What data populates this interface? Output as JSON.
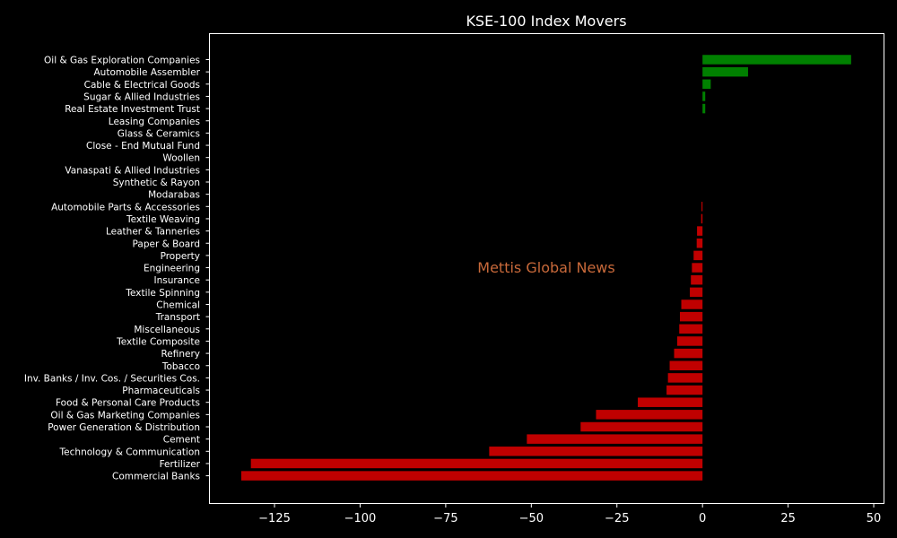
{
  "chart_data": {
    "type": "bar",
    "orientation": "horizontal",
    "title": "KSE-100 Index Movers",
    "watermark": "Mettis Global News",
    "xlim": [
      -144,
      53
    ],
    "xticks": [
      -125,
      -100,
      -75,
      -50,
      -25,
      0,
      25,
      50
    ],
    "xtick_labels": [
      "−125",
      "−100",
      "−75",
      "−50",
      "−25",
      "0",
      "25",
      "50"
    ],
    "grid": false,
    "colors": {
      "positive": "#008000",
      "negative": "#c00000",
      "background": "#000000",
      "axes": "#ffffff"
    },
    "categories": [
      "Oil & Gas Exploration Companies",
      "Automobile Assembler",
      "Cable & Electrical Goods",
      "Sugar & Allied Industries",
      "Real Estate Investment Trust",
      "Leasing Companies",
      "Glass & Ceramics",
      "Close - End Mutual Fund",
      "Woollen",
      "Vanaspati & Allied Industries",
      "Synthetic & Rayon",
      "Modarabas",
      "Automobile Parts & Accessories",
      "Textile Weaving",
      "Leather & Tanneries",
      "Paper & Board",
      "Property",
      "Engineering",
      "Insurance",
      "Textile Spinning",
      "Chemical",
      "Transport",
      "Miscellaneous",
      "Textile Composite",
      "Refinery",
      "Tobacco",
      "Inv. Banks / Inv. Cos. / Securities Cos.",
      "Pharmaceuticals",
      "Food & Personal Care Products",
      "Oil & Gas Marketing Companies",
      "Power Generation & Distribution",
      "Cement",
      "Technology & Communication",
      "Fertilizer",
      "Commercial Banks"
    ],
    "values": [
      43.4,
      13.3,
      2.4,
      0.8,
      0.8,
      0,
      0,
      0,
      0,
      0,
      0,
      0,
      -0.3,
      -0.4,
      -1.6,
      -1.7,
      -2.6,
      -3.1,
      -3.4,
      -3.7,
      -6.2,
      -6.6,
      -6.8,
      -7.4,
      -8.3,
      -9.6,
      -10.1,
      -10.5,
      -18.9,
      -31.1,
      -35.6,
      -51.3,
      -62.3,
      -131.9,
      -134.7
    ]
  }
}
